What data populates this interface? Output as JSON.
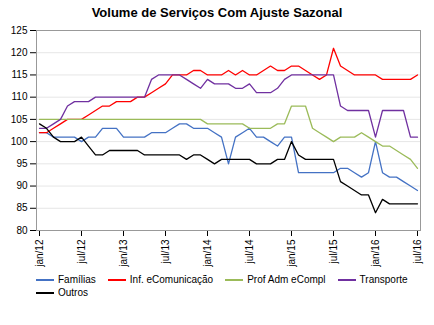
{
  "chart_data": {
    "type": "line",
    "title": "Volume de Serviços Com Ajuste Sazonal",
    "categories": [
      "jan/12",
      null,
      null,
      null,
      null,
      null,
      "jul/12",
      null,
      null,
      null,
      null,
      null,
      "jan/13",
      null,
      null,
      null,
      null,
      null,
      "jul/13",
      null,
      null,
      null,
      null,
      null,
      "jan/14",
      null,
      null,
      null,
      null,
      null,
      "jul/14",
      null,
      null,
      null,
      null,
      null,
      "jan/15",
      null,
      null,
      null,
      null,
      null,
      "jul/15",
      null,
      null,
      null,
      null,
      null,
      "jan/16",
      null,
      null,
      null,
      null,
      null,
      "jul/16"
    ],
    "ylim": [
      80,
      125
    ],
    "yticks": [
      80,
      85,
      90,
      95,
      100,
      105,
      110,
      115,
      120,
      125
    ],
    "grid": true,
    "legend": "bottom",
    "series": [
      {
        "name": "Famílias",
        "color": "#4472c4",
        "values": [
          102,
          102,
          101,
          101,
          101,
          101,
          100,
          101,
          101,
          103,
          103,
          103,
          101,
          101,
          101,
          101,
          102,
          102,
          102,
          103,
          104,
          104,
          103,
          103,
          103,
          102,
          101,
          95,
          101,
          102,
          103,
          101,
          101,
          100,
          99,
          101,
          101,
          93,
          93,
          93,
          93,
          93,
          93,
          94,
          94,
          93,
          92,
          93,
          100,
          93,
          92,
          92,
          91,
          90,
          89
        ]
      },
      {
        "name": "Inf. eComunicação",
        "color": "#ff0000",
        "values": [
          102,
          102,
          103,
          104,
          105,
          105,
          105,
          106,
          107,
          108,
          108,
          109,
          109,
          109,
          110,
          110,
          111,
          112,
          113,
          115,
          115,
          115,
          116,
          116,
          115,
          115,
          115,
          116,
          115,
          116,
          115,
          115,
          116,
          117,
          116,
          116,
          117,
          117,
          116,
          115,
          114,
          115,
          121,
          117,
          116,
          115,
          115,
          115,
          115,
          114,
          114,
          114,
          114,
          114,
          115
        ]
      },
      {
        "name": "Prof Adm eCompl",
        "color": "#9bbb59",
        "values": [
          105,
          105,
          105,
          105,
          105,
          105,
          105,
          105,
          105,
          105,
          105,
          105,
          105,
          105,
          105,
          105,
          105,
          105,
          105,
          105,
          105,
          105,
          105,
          105,
          104,
          104,
          104,
          104,
          104,
          104,
          103,
          103,
          103,
          103,
          104,
          104,
          108,
          108,
          108,
          103,
          102,
          101,
          100,
          101,
          101,
          101,
          102,
          101,
          100,
          99,
          99,
          98,
          97,
          96,
          94
        ]
      },
      {
        "name": "Transporte",
        "color": "#7030a0",
        "values": [
          103,
          103,
          104,
          105,
          108,
          109,
          109,
          109,
          110,
          110,
          110,
          110,
          110,
          110,
          110,
          110,
          114,
          115,
          115,
          115,
          115,
          114,
          113,
          112,
          114,
          113,
          113,
          113,
          112,
          112,
          113,
          111,
          111,
          111,
          112,
          114,
          115,
          115,
          115,
          115,
          115,
          115,
          115,
          108,
          107,
          107,
          107,
          107,
          101,
          107,
          107,
          107,
          107,
          101,
          101
        ]
      },
      {
        "name": "Outros",
        "color": "#000000",
        "values": [
          104,
          103,
          101,
          100,
          100,
          100,
          101,
          99,
          97,
          97,
          98,
          98,
          98,
          98,
          98,
          97,
          97,
          97,
          97,
          97,
          97,
          96,
          97,
          97,
          96,
          95,
          96,
          96,
          96,
          96,
          96,
          95,
          95,
          95,
          96,
          96,
          100,
          97,
          96,
          96,
          96,
          96,
          96,
          91,
          90,
          89,
          88,
          88,
          84,
          87,
          86,
          86,
          86,
          86,
          86
        ]
      }
    ]
  }
}
